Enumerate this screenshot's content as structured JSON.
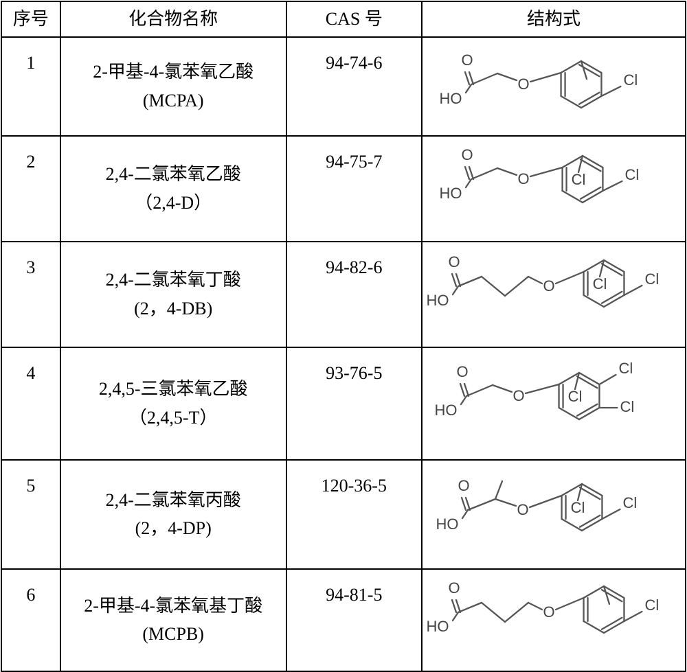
{
  "columns": {
    "seq": "序号",
    "name": "化合物名称",
    "cas": "CAS 号",
    "struct": "结构式"
  },
  "rows": [
    {
      "seq": "1",
      "name_line1": "2-甲基-4-氯苯氧乙酸",
      "name_line2": "(MCPA)",
      "cas": "94-74-6",
      "structure": "MCPA"
    },
    {
      "seq": "2",
      "name_line1": "2,4-二氯苯氧乙酸",
      "name_line2": "（2,4-D）",
      "cas": "94-75-7",
      "structure": "24D"
    },
    {
      "seq": "3",
      "name_line1": "2,4-二氯苯氧丁酸",
      "name_line2": "(2，4-DB)",
      "cas": "94-82-6",
      "structure": "24DB"
    },
    {
      "seq": "4",
      "name_line1": "2,4,5-三氯苯氧乙酸",
      "name_line2": "（2,4,5-T）",
      "cas": "93-76-5",
      "structure": "245T"
    },
    {
      "seq": "5",
      "name_line1": "2,4-二氯苯氧丙酸",
      "name_line2": "(2，4-DP)",
      "cas": "120-36-5",
      "structure": "24DP"
    },
    {
      "seq": "6",
      "name_line1": "2-甲基-4-氯苯氧基丁酸",
      "name_line2": "(MCPB)",
      "cas": "94-81-5",
      "structure": "MCPB"
    }
  ],
  "style": {
    "border_color": "#000000",
    "background_color": "#ffffff",
    "header_fontsize": 26,
    "cell_fontsize": 26,
    "mol_stroke": "#555555",
    "mol_text_color": "#444444",
    "mol_stroke_width": 2.3,
    "col_widths": {
      "seq": 86,
      "name": 330,
      "cas": 198,
      "struct": 384
    },
    "row_heights": {
      "header": 52,
      "body": 152
    }
  },
  "labels": {
    "O": "O",
    "HO": "HO",
    "Cl": "Cl"
  }
}
